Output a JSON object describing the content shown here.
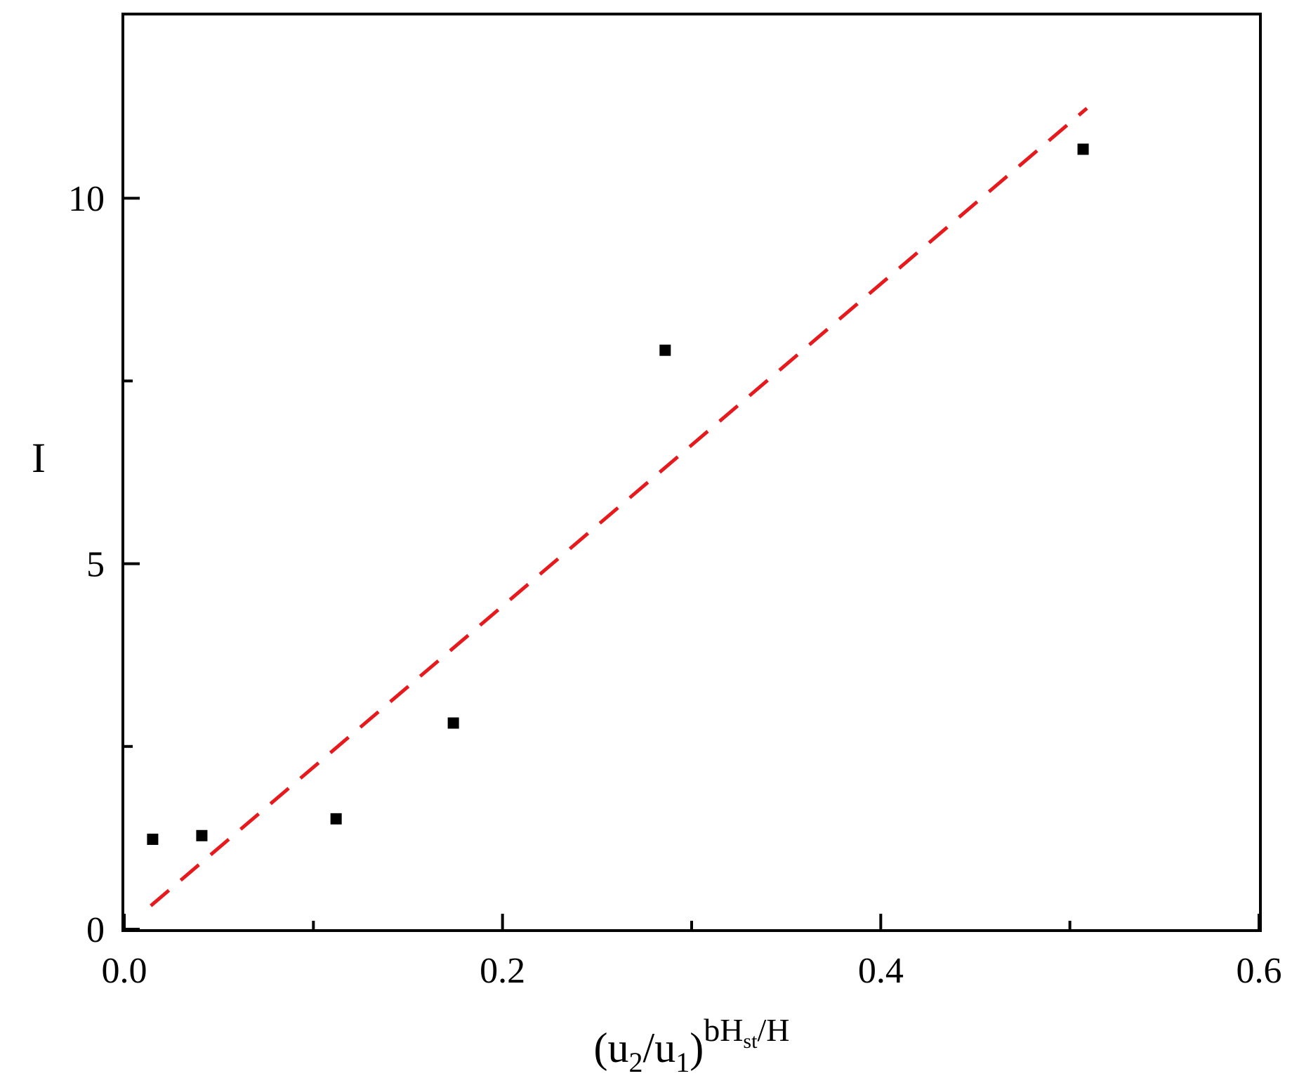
{
  "chart_data": {
    "type": "scatter",
    "title": "",
    "xlabel": {
      "base": "(u",
      "sub1": "2",
      "mid": "/u",
      "sub2": "1",
      "close": ")",
      "sup_a": "bH",
      "sup_sub": "st",
      "sup_b": "/H"
    },
    "ylabel": "I",
    "xlim": [
      0.0,
      0.6
    ],
    "ylim": [
      0,
      12.5
    ],
    "x_ticks_major": [
      0.0,
      0.2,
      0.4,
      0.6
    ],
    "x_tick_labels": [
      "0.0",
      "0.2",
      "0.4",
      "0.6"
    ],
    "x_ticks_minor": [
      0.1,
      0.3,
      0.5
    ],
    "y_ticks_major": [
      0,
      5,
      10
    ],
    "y_tick_labels": [
      "0",
      "5",
      "10"
    ],
    "y_ticks_minor": [
      2.5,
      7.5
    ],
    "grid": false,
    "series": [
      {
        "type": "scatter",
        "marker": "square",
        "color": "#000000",
        "points": [
          {
            "x": 0.015,
            "y": 1.23
          },
          {
            "x": 0.041,
            "y": 1.28
          },
          {
            "x": 0.112,
            "y": 1.51
          },
          {
            "x": 0.174,
            "y": 2.82
          },
          {
            "x": 0.286,
            "y": 7.92
          },
          {
            "x": 0.507,
            "y": 10.67
          }
        ]
      },
      {
        "type": "line",
        "style": "dashed",
        "color": "#e8191c",
        "x": [
          0.014,
          0.509
        ],
        "y": [
          0.32,
          11.23
        ]
      }
    ]
  }
}
